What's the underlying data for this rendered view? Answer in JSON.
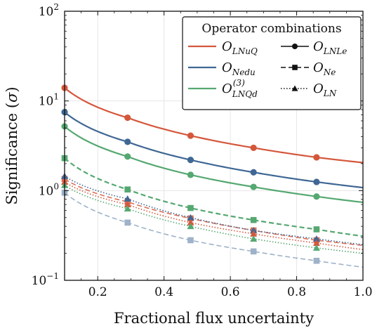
{
  "chart_data": {
    "type": "line",
    "xlabel": "Fractional flux uncertainty",
    "ylabel_prefix": "Significance (",
    "ylabel_symbol": "σ",
    "ylabel_suffix": ")",
    "xlim": [
      0.1,
      1.0
    ],
    "ylim": [
      0.1,
      100
    ],
    "yscale": "log",
    "grid": true,
    "x_ticks": [
      {
        "value": 0.2,
        "label": "0.2"
      },
      {
        "value": 0.4,
        "label": "0.4"
      },
      {
        "value": 0.6,
        "label": "0.6"
      },
      {
        "value": 0.8,
        "label": "0.8"
      },
      {
        "value": 1.0,
        "label": "1.0"
      }
    ],
    "y_ticks": [
      {
        "value": 0.1,
        "base": "10",
        "exp": "−1"
      },
      {
        "value": 1,
        "base": "10",
        "exp": "0"
      },
      {
        "value": 10,
        "base": "10",
        "exp": "1"
      },
      {
        "value": 100,
        "base": "10",
        "exp": "2"
      }
    ],
    "marker_x": [
      0.1,
      0.29,
      0.48,
      0.67,
      0.86
    ],
    "legend": {
      "title": "Operator combinations",
      "position": "top-right",
      "colors": [
        {
          "main": "O",
          "sub": "LNuQ",
          "sup": "",
          "color": "#d4573b"
        },
        {
          "main": "O",
          "sub": "Nedu",
          "sup": "",
          "color": "#3f6794"
        },
        {
          "main": "O",
          "sub": "LNQd",
          "sup": "(3)",
          "color": "#55a871"
        }
      ],
      "styles": [
        {
          "main": "O",
          "sub": "LNLe",
          "linestyle": "solid",
          "marker": "circle"
        },
        {
          "main": "O",
          "sub": "Ne",
          "linestyle": "dashed",
          "marker": "square"
        },
        {
          "main": "O",
          "sub": "LN",
          "linestyle": "dotted",
          "marker": "triangle"
        }
      ]
    },
    "series": [
      {
        "color": "#d4573b",
        "linestyle": "solid",
        "marker": "circle",
        "width": 2.2,
        "opacity": 1,
        "x": [
          0.1,
          0.29,
          0.48,
          0.67,
          0.86,
          1.0
        ],
        "values": [
          14,
          6.5,
          4.1,
          3.0,
          2.35,
          2.05
        ]
      },
      {
        "color": "#3f6794",
        "linestyle": "solid",
        "marker": "circle",
        "width": 2.2,
        "opacity": 1,
        "x": [
          0.1,
          0.29,
          0.48,
          0.67,
          0.86,
          1.0
        ],
        "values": [
          7.5,
          3.5,
          2.2,
          1.6,
          1.25,
          1.08
        ]
      },
      {
        "color": "#55a871",
        "linestyle": "solid",
        "marker": "circle",
        "width": 2.2,
        "opacity": 1,
        "x": [
          0.1,
          0.29,
          0.48,
          0.67,
          0.86,
          1.0
        ],
        "values": [
          5.2,
          2.4,
          1.5,
          1.1,
          0.86,
          0.74
        ]
      },
      {
        "color": "#55a871",
        "linestyle": "dashed",
        "marker": "square",
        "width": 2.2,
        "opacity": 1,
        "x": [
          0.1,
          0.29,
          0.48,
          0.67,
          0.86,
          1.0
        ],
        "values": [
          2.3,
          1.03,
          0.64,
          0.47,
          0.37,
          0.31
        ]
      },
      {
        "color": "#d4573b",
        "linestyle": "dashed",
        "marker": "square",
        "width": 1.6,
        "opacity": 0.85,
        "x": [
          0.1,
          0.29,
          0.48,
          0.67,
          0.86,
          1.0
        ],
        "values": [
          1.35,
          0.75,
          0.49,
          0.36,
          0.28,
          0.245
        ]
      },
      {
        "color": "#3f6794",
        "linestyle": "dashed",
        "marker": "square",
        "width": 1.6,
        "opacity": 0.5,
        "x": [
          0.1,
          0.29,
          0.48,
          0.67,
          0.86,
          1.0
        ],
        "values": [
          0.95,
          0.44,
          0.28,
          0.21,
          0.165,
          0.14
        ]
      },
      {
        "color": "#3f6794",
        "linestyle": "dotted",
        "marker": "triangle",
        "width": 1.6,
        "opacity": 1,
        "x": [
          0.1,
          0.29,
          0.48,
          0.67,
          0.86,
          1.0
        ],
        "values": [
          1.45,
          0.81,
          0.5,
          0.36,
          0.29,
          0.25
        ]
      },
      {
        "color": "#d4573b",
        "linestyle": "dotted",
        "marker": "triangle",
        "width": 1.6,
        "opacity": 1,
        "x": [
          0.1,
          0.29,
          0.48,
          0.67,
          0.86,
          1.0
        ],
        "values": [
          1.25,
          0.7,
          0.44,
          0.33,
          0.26,
          0.22
        ]
      },
      {
        "color": "#55a871",
        "linestyle": "dotted",
        "marker": "triangle",
        "width": 1.6,
        "opacity": 1,
        "x": [
          0.1,
          0.29,
          0.48,
          0.67,
          0.86,
          1.0
        ],
        "values": [
          1.15,
          0.63,
          0.4,
          0.29,
          0.23,
          0.2
        ]
      }
    ]
  }
}
